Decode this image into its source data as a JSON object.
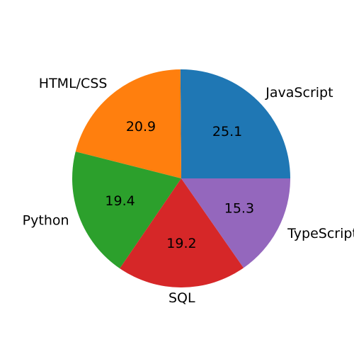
{
  "chart_data": {
    "type": "pie",
    "categories": [
      "JavaScript",
      "HTML/CSS",
      "Python",
      "SQL",
      "TypeScript"
    ],
    "values": [
      25.1,
      20.9,
      19.4,
      19.2,
      15.3
    ],
    "value_labels": [
      "25.1",
      "20.9",
      "19.4",
      "19.2",
      "15.3"
    ],
    "colors": [
      "#1f77b4",
      "#ff7f0e",
      "#2ca02c",
      "#d62728",
      "#9467bd"
    ],
    "start_angle_deg": 0,
    "direction": "counterclockwise",
    "legend": "none"
  }
}
